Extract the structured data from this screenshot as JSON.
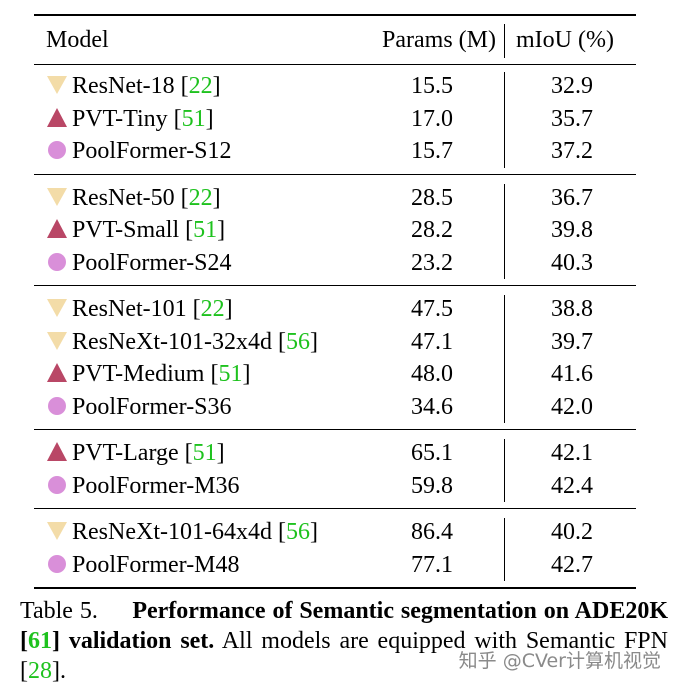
{
  "header": {
    "model": "Model",
    "params": "Params (M)",
    "miou": "mIoU (%)"
  },
  "groups": [
    {
      "rows": [
        {
          "marker": "inverted-triangle",
          "name": "ResNet-18",
          "cite": "22",
          "params": "15.5",
          "miou": "32.9"
        },
        {
          "marker": "triangle",
          "name": "PVT-Tiny",
          "cite": "51",
          "params": "17.0",
          "miou": "35.7"
        },
        {
          "marker": "circle",
          "name": "PoolFormer-S12",
          "cite": "",
          "params": "15.7",
          "miou": "37.2"
        }
      ]
    },
    {
      "rows": [
        {
          "marker": "inverted-triangle",
          "name": "ResNet-50",
          "cite": "22",
          "params": "28.5",
          "miou": "36.7"
        },
        {
          "marker": "triangle",
          "name": "PVT-Small",
          "cite": "51",
          "params": "28.2",
          "miou": "39.8"
        },
        {
          "marker": "circle",
          "name": "PoolFormer-S24",
          "cite": "",
          "params": "23.2",
          "miou": "40.3"
        }
      ]
    },
    {
      "rows": [
        {
          "marker": "inverted-triangle",
          "name": "ResNet-101",
          "cite": "22",
          "params": "47.5",
          "miou": "38.8"
        },
        {
          "marker": "inverted-triangle",
          "name": "ResNeXt-101-32x4d",
          "cite": "56",
          "params": "47.1",
          "miou": "39.7"
        },
        {
          "marker": "triangle",
          "name": "PVT-Medium",
          "cite": "51",
          "params": "48.0",
          "miou": "41.6"
        },
        {
          "marker": "circle",
          "name": "PoolFormer-S36",
          "cite": "",
          "params": "34.6",
          "miou": "42.0"
        }
      ]
    },
    {
      "rows": [
        {
          "marker": "triangle",
          "name": "PVT-Large",
          "cite": "51",
          "params": "65.1",
          "miou": "42.1"
        },
        {
          "marker": "circle",
          "name": "PoolFormer-M36",
          "cite": "",
          "params": "59.8",
          "miou": "42.4"
        }
      ]
    },
    {
      "rows": [
        {
          "marker": "inverted-triangle",
          "name": "ResNeXt-101-64x4d",
          "cite": "56",
          "params": "86.4",
          "miou": "40.2"
        },
        {
          "marker": "circle",
          "name": "PoolFormer-M48",
          "cite": "",
          "params": "77.1",
          "miou": "42.7"
        }
      ]
    }
  ],
  "marker_colors": {
    "inverted-triangle": "#f3dca8",
    "triangle": "#b94766",
    "circle": "#d98fd9"
  },
  "caption": {
    "label": "Table 5.",
    "bold_part1": "Performance of Semantic segmentation on ADE20K",
    "bold_cite": "61",
    "bold_part2": "validation set.",
    "rest_part1": "All models are equipped with Semantic FPN",
    "rest_cite": "28",
    "rest_part2": "."
  },
  "watermark": "知乎 @CVer计算机视觉"
}
